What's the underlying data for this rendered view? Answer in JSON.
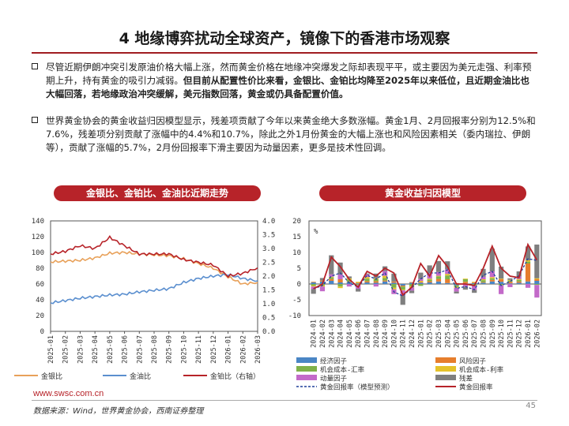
{
  "header": {
    "title": "4 地缘博弈扰动全球资产，镜像下的香港市场观察"
  },
  "paragraphs": [
    {
      "normal": "尽管近期伊朗冲突引发原油价格大幅上涨，然而黄金价格在地缘冲突爆发之际却表现平平，或主要因为美元走强、利率预期上升，持有黄金的吸引力减弱。",
      "bold": "但目前从配置性价比来看，金银比、金铂比均降至2025年以来低位，且近期金油比也大幅回落，若地缘政治冲突缓解，美元指数回落，黄金或仍具备配置价值。"
    },
    {
      "normal": "世界黄金协会的黄金收益归因模型显示，残差项贡献了今年以来黄金绝大多数涨幅。黄金1月、2月回报率分别为12.5%和7.6%，残差项分别贡献了涨幅中的4.4%和10.7%，除此之外1月份黄金的大幅上涨也和风险因素相关（委内瑞拉、伊朗等），贡献了涨幅的5.7%，2月份回报率下滑主要因为动量因素，更多是技术性回调。",
      "bold": ""
    }
  ],
  "left_chart": {
    "banner": "金银比、金铂比、金油比近期走势",
    "legend": [
      "金银比",
      "金油比",
      "金铂比（右轴）"
    ]
  },
  "right_chart": {
    "banner": "黄金收益归因模型",
    "unit": "%",
    "legend": [
      "经济因子",
      "风险因子",
      "机会成本-汇率",
      "机会成本-利率",
      "动量因子",
      "残差",
      "黄金回报率（模型预测）",
      "黄金回报率"
    ]
  },
  "colors": {
    "accent": "#b72329",
    "silver_ratio": "#e8a15a",
    "oil_ratio": "#5b8fcf",
    "platinum_ratio": "#b72329",
    "economic": "#4a86c5",
    "risk": "#e67e2d",
    "fx": "#7fb24a",
    "rate": "#e5c22a",
    "momentum": "#c36ac9",
    "residual": "#7f7f7f"
  },
  "chart_data": [
    {
      "type": "line",
      "x": [
        "2025-01",
        "2025-02",
        "2025-03",
        "2025-04",
        "2025-05",
        "2025-06",
        "2025-07",
        "2025-08",
        "2025-09",
        "2025-10",
        "2025-11",
        "2025-12",
        "2026-01",
        "2026-02",
        "2026-03"
      ],
      "ylim": [
        0,
        140
      ],
      "y2lim": [
        0,
        4.0
      ],
      "yticks": [
        0,
        20,
        40,
        60,
        80,
        100,
        120,
        140
      ],
      "y2ticks": [
        "0.0",
        "0.5",
        "1.0",
        "1.5",
        "2.0",
        "2.5",
        "3.0",
        "3.5",
        "4.0"
      ],
      "series": [
        {
          "name": "金银比",
          "axis": "left",
          "values": [
            88,
            89,
            90,
            93,
            99,
            100,
            98,
            97,
            96,
            92,
            86,
            80,
            69,
            60,
            62
          ]
        },
        {
          "name": "金油比",
          "axis": "left",
          "values": [
            36,
            39,
            42,
            44,
            46,
            47,
            50,
            52,
            54,
            62,
            67,
            70,
            72,
            67,
            64
          ]
        },
        {
          "name": "金铂比（右轴）",
          "axis": "right",
          "values": [
            2.8,
            2.9,
            3.1,
            3.0,
            3.4,
            3.1,
            2.8,
            2.8,
            2.8,
            2.6,
            2.5,
            2.4,
            2.0,
            2.1,
            2.3
          ]
        }
      ]
    },
    {
      "type": "bar",
      "categories": [
        "2024-01",
        "2024-02",
        "2024-03",
        "2024-04",
        "2024-05",
        "2024-06",
        "2024-07",
        "2024-08",
        "2024-09",
        "2024-10",
        "2024-11",
        "2024-12",
        "2025-01",
        "2025-02",
        "2025-03",
        "2025-04",
        "2025-05",
        "2025-06",
        "2025-07",
        "2025-08",
        "2025-09",
        "2025-10",
        "2025-11",
        "2025-12",
        "2026-01",
        "2026-02"
      ],
      "ylim": [
        -10,
        20
      ],
      "yticks": [
        -10,
        -5,
        0,
        5,
        10,
        15,
        20
      ],
      "series": [
        {
          "name": "经济因子",
          "values": [
            0.5,
            0.8,
            1.0,
            0.5,
            0.6,
            0.2,
            0.5,
            0.4,
            0.8,
            0.4,
            -0.5,
            0.4,
            0.4,
            0.5,
            0.8,
            0.3,
            -0.4,
            0.2,
            0.3,
            0.4,
            0.8,
            0.7,
            0.2,
            0.4,
            0.8,
            1.0
          ]
        },
        {
          "name": "风险因子",
          "values": [
            0.2,
            0.3,
            0.6,
            1.0,
            0.2,
            0.2,
            0.4,
            0.5,
            0.3,
            0.4,
            -0.3,
            0.2,
            0.3,
            0.4,
            0.8,
            1.2,
            0.3,
            0.5,
            0.2,
            0.2,
            0.5,
            0.8,
            0.5,
            0.4,
            5.7,
            0.5
          ]
        },
        {
          "name": "机会成本-汇率",
          "values": [
            -0.5,
            -0.4,
            0.5,
            -0.8,
            0.6,
            -0.3,
            0.8,
            0.6,
            0.8,
            -1.2,
            -1.0,
            -0.7,
            -0.6,
            0.5,
            0.8,
            1.2,
            -0.5,
            0.8,
            -0.5,
            0.6,
            0.5,
            -0.4,
            0.4,
            0.5,
            0.6,
            -0.3
          ]
        },
        {
          "name": "机会成本-利率",
          "values": [
            -0.3,
            -0.4,
            0.2,
            -0.5,
            0.4,
            0.3,
            0.5,
            0.3,
            0.7,
            -0.5,
            -0.2,
            -0.4,
            0.3,
            0.3,
            0.2,
            0.5,
            -0.3,
            0.2,
            0.2,
            0.3,
            0.4,
            0.2,
            0.2,
            0.3,
            0.4,
            0.3
          ]
        },
        {
          "name": "动量因子",
          "values": [
            -0.8,
            -1.5,
            0.8,
            1.5,
            -0.8,
            -1.2,
            0.8,
            -0.8,
            1.5,
            -1.5,
            -1.6,
            -1.0,
            0.6,
            1.8,
            1.2,
            1.5,
            -1.2,
            -0.8,
            -1.4,
            0.8,
            1.8,
            -2.8,
            -1.0,
            0.8,
            -1.2,
            -4.0
          ]
        },
        {
          "name": "残差",
          "values": [
            -1.5,
            0.8,
            6.0,
            3.8,
            0.6,
            -0.9,
            0.3,
            1.5,
            1.5,
            2.5,
            -3.0,
            -0.8,
            2.0,
            2.4,
            3.5,
            2.5,
            -0.6,
            -1.0,
            -0.9,
            2.5,
            7.2,
            3.8,
            0.5,
            1.6,
            4.4,
            10.7
          ]
        },
        {
          "name": "黄金回报率（模型预测）",
          "values": [
            -1.5,
            -0.5,
            2.5,
            3.5,
            0.4,
            -1.0,
            2.8,
            1.5,
            3.5,
            -2.5,
            -3.8,
            -1.2,
            1.6,
            3.5,
            3.5,
            4.5,
            -1.4,
            -0.8,
            -1.8,
            2.8,
            4.0,
            -0.5,
            0.8,
            2.6,
            8.0,
            7.5
          ]
        },
        {
          "name": "黄金回报率",
          "values": [
            -1.5,
            0.0,
            8.5,
            5.5,
            1.5,
            -1.0,
            4.0,
            2.5,
            5.0,
            3.5,
            -3.5,
            -1.0,
            6.5,
            2.5,
            9.0,
            5.5,
            0.0,
            0.0,
            -0.5,
            5.0,
            12.0,
            5.0,
            2.5,
            2.0,
            12.5,
            7.6
          ]
        }
      ]
    }
  ],
  "footer": {
    "url": "www.swsc.com.cn",
    "source": "数据来源：Wind，世界黄金协会，西南证券整理",
    "page": "45"
  }
}
